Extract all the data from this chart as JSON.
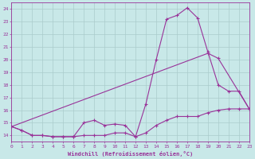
{
  "xlabel": "Windchill (Refroidissement éolien,°C)",
  "xlim": [
    0,
    23
  ],
  "ylim": [
    13.5,
    24.5
  ],
  "yticks": [
    14,
    15,
    16,
    17,
    18,
    19,
    20,
    21,
    22,
    23,
    24
  ],
  "xticks": [
    0,
    1,
    2,
    3,
    4,
    5,
    6,
    7,
    8,
    9,
    10,
    11,
    12,
    13,
    14,
    15,
    16,
    17,
    18,
    19,
    20,
    21,
    22,
    23
  ],
  "bg_color": "#c8e8e8",
  "line_color": "#993399",
  "grid_color": "#aacccc",
  "line1_x": [
    0,
    1,
    2,
    3,
    4,
    5,
    6,
    7,
    8,
    9,
    10,
    11,
    12,
    13,
    14,
    15,
    16,
    17,
    18,
    19,
    20,
    21,
    22,
    23
  ],
  "line1_y": [
    14.7,
    14.4,
    14.0,
    14.0,
    13.9,
    13.9,
    13.9,
    14.0,
    14.0,
    14.0,
    14.2,
    14.2,
    13.9,
    14.2,
    14.8,
    15.2,
    15.5,
    15.5,
    15.5,
    15.8,
    16.0,
    16.1,
    16.1,
    16.1
  ],
  "line2_x": [
    0,
    1,
    2,
    3,
    4,
    5,
    6,
    7,
    8,
    9,
    10,
    11,
    12,
    13,
    14,
    15,
    16,
    17,
    18,
    19,
    20,
    21,
    22,
    23
  ],
  "line2_y": [
    14.7,
    14.4,
    14.0,
    14.0,
    13.9,
    13.9,
    13.9,
    15.0,
    15.2,
    14.8,
    14.9,
    14.8,
    13.9,
    16.5,
    20.0,
    23.2,
    23.5,
    24.1,
    23.3,
    20.6,
    18.0,
    17.5,
    17.5,
    16.1
  ],
  "line3_x": [
    0,
    19,
    20,
    23
  ],
  "line3_y": [
    14.7,
    20.5,
    20.1,
    16.1
  ]
}
